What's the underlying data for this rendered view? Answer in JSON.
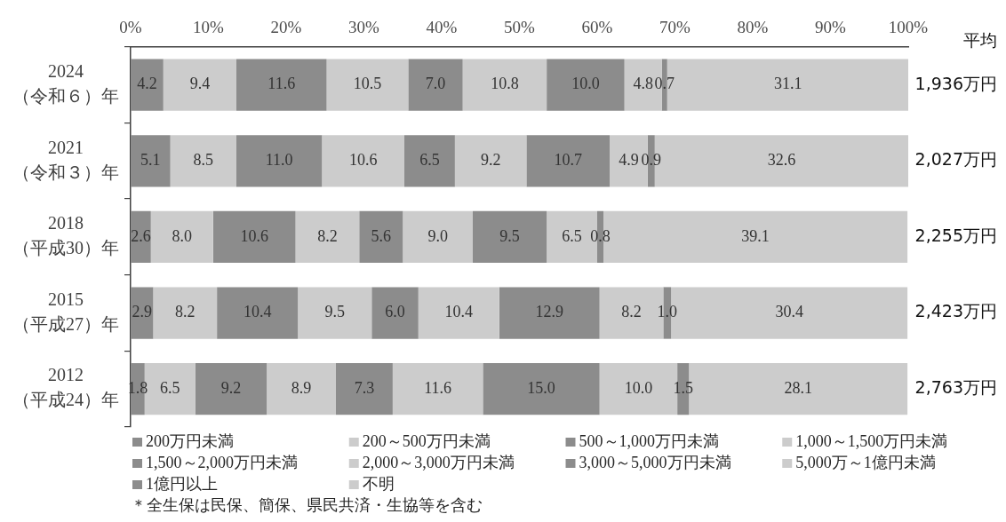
{
  "chart_data": {
    "type": "bar",
    "orientation": "horizontal",
    "stacked": true,
    "categories": [
      "2024\n（令和６）年",
      "2021\n（令和３）年",
      "2018\n（平成30）年",
      "2015\n（平成27）年",
      "2012\n（平成24）年"
    ],
    "xlim": [
      0,
      100
    ],
    "xticks": [
      {
        "value": 0,
        "label": "0%"
      },
      {
        "value": 10,
        "label": "10%"
      },
      {
        "value": 20,
        "label": "20%"
      },
      {
        "value": 30,
        "label": "30%"
      },
      {
        "value": 40,
        "label": "40%"
      },
      {
        "value": 50,
        "label": "50%"
      },
      {
        "value": 60,
        "label": "60%"
      },
      {
        "value": 70,
        "label": "70%"
      },
      {
        "value": 80,
        "label": "80%"
      },
      {
        "value": 90,
        "label": "90%"
      },
      {
        "value": 100,
        "label": "100%"
      }
    ],
    "legend": "bottom",
    "series": [
      {
        "name": "200万円未満",
        "color": "#8c8c8c",
        "values": [
          4.2,
          5.1,
          2.6,
          2.9,
          1.8
        ],
        "value_labels": [
          "4.2",
          "5.1",
          "2.6",
          "2.9",
          "1.8"
        ]
      },
      {
        "name": "200～500万円未満",
        "color": "#cccccc",
        "values": [
          9.4,
          8.5,
          8.0,
          8.2,
          6.5
        ],
        "value_labels": [
          "9.4",
          "8.5",
          "8.0",
          "8.2",
          "6.5"
        ]
      },
      {
        "name": "500～1,000万円未満",
        "color": "#8c8c8c",
        "values": [
          11.6,
          11.0,
          10.6,
          10.4,
          9.2
        ],
        "value_labels": [
          "11.6",
          "11.0",
          "10.6",
          "10.4",
          "9.2"
        ]
      },
      {
        "name": "1,000～1,500万円未満",
        "color": "#cccccc",
        "values": [
          10.5,
          10.6,
          8.2,
          9.5,
          8.9
        ],
        "value_labels": [
          "10.5",
          "10.6",
          "8.2",
          "9.5",
          "8.9"
        ]
      },
      {
        "name": "1,500～2,000万円未満",
        "color": "#8c8c8c",
        "values": [
          7.0,
          6.5,
          5.6,
          6.0,
          7.3
        ],
        "value_labels": [
          "7.0",
          "6.5",
          "5.6",
          "6.0",
          "7.3"
        ]
      },
      {
        "name": "2,000～3,000万円未満",
        "color": "#cccccc",
        "values": [
          10.8,
          9.2,
          9.0,
          10.4,
          11.6
        ],
        "value_labels": [
          "10.8",
          "9.2",
          "9.0",
          "10.4",
          "11.6"
        ]
      },
      {
        "name": "3,000～5,000万円未満",
        "color": "#8c8c8c",
        "values": [
          10.0,
          10.7,
          9.5,
          12.9,
          15.0
        ],
        "value_labels": [
          "10.0",
          "10.7",
          "9.5",
          "12.9",
          "15.0"
        ]
      },
      {
        "name": "5,000万～1億円未満",
        "color": "#cccccc",
        "values": [
          4.8,
          4.9,
          6.5,
          8.2,
          10.0
        ],
        "value_labels": [
          "4.8",
          "4.9",
          "6.5",
          "8.2",
          "10.0"
        ]
      },
      {
        "name": "1億円以上",
        "color": "#8c8c8c",
        "values": [
          0.7,
          0.9,
          0.8,
          1.0,
          1.5
        ],
        "value_labels": [
          "0.7",
          "0.9",
          "0.8",
          "1.0",
          "1.5"
        ]
      },
      {
        "name": "不明",
        "color": "#cccccc",
        "values": [
          31.1,
          32.6,
          39.1,
          30.4,
          28.1
        ],
        "value_labels": [
          "31.1",
          "32.6",
          "39.1",
          "30.4",
          "28.1"
        ]
      }
    ],
    "annotations": [
      "平均",
      "1,936万円",
      "2,027万円",
      "2,255万円",
      "2,423万円",
      "2,763万円",
      "＊全生保は民保、簡保、県民共済・生協等を含む"
    ]
  }
}
